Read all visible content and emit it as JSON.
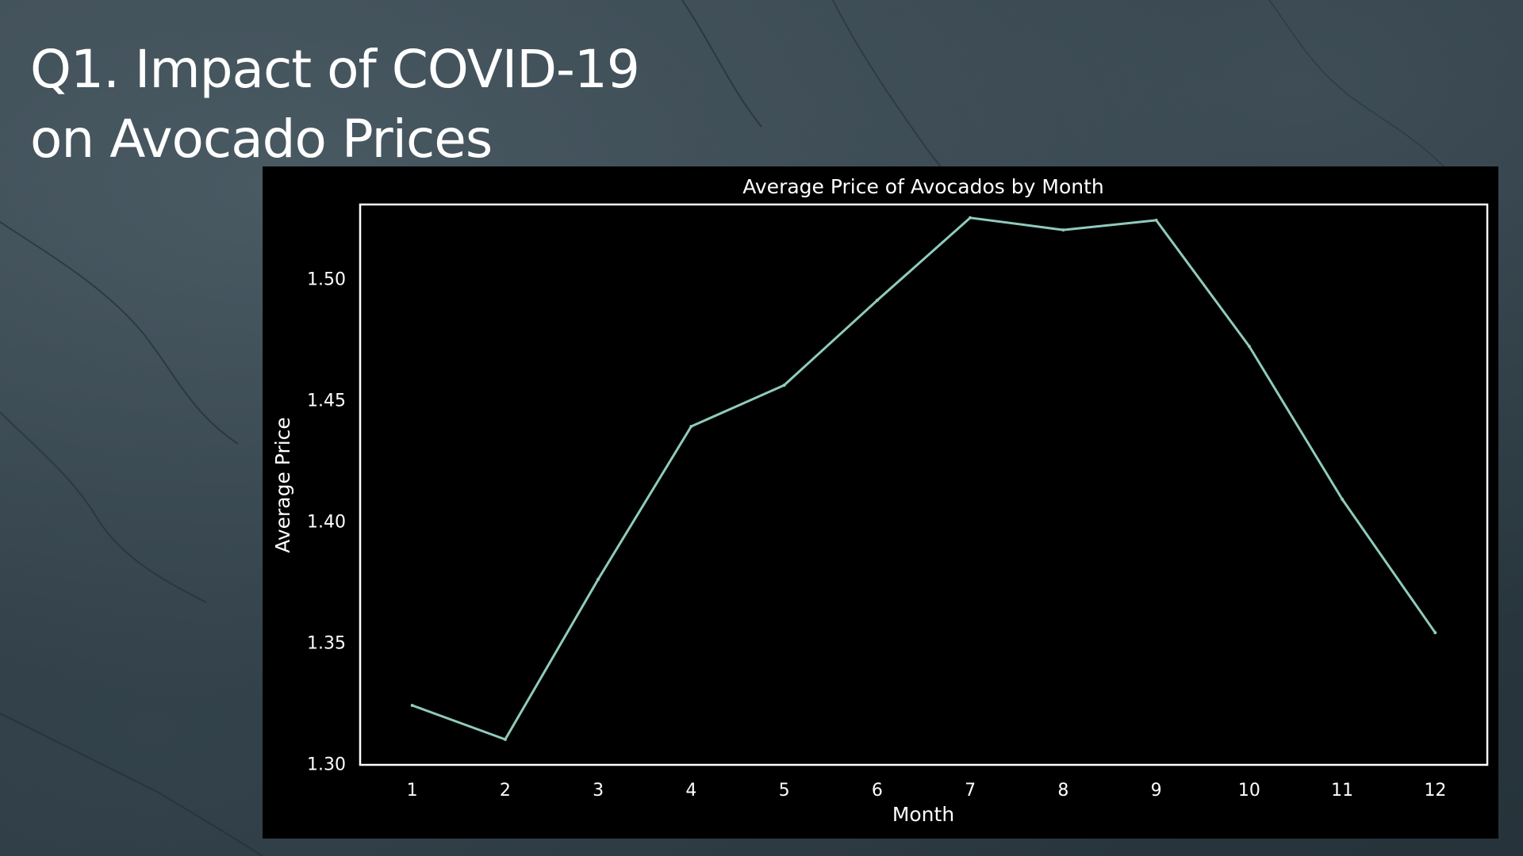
{
  "slide": {
    "title_line1": "Q1. Impact of COVID-19",
    "title_line2": "on Avocado Prices"
  },
  "colors": {
    "line": "#8fcbbd",
    "panel": "#000000",
    "text": "#ffffff"
  },
  "chart_data": {
    "type": "line",
    "title": "Average Price of Avocados by Month",
    "xlabel": "Month",
    "ylabel": "Average Price",
    "x": [
      1,
      2,
      3,
      4,
      5,
      6,
      7,
      8,
      9,
      10,
      11,
      12
    ],
    "series": [
      {
        "values": [
          1.324,
          1.31,
          1.376,
          1.439,
          1.456,
          1.491,
          1.525,
          1.52,
          1.524,
          1.472,
          1.409,
          1.354
        ]
      }
    ],
    "xlim": [
      0.44,
      12.56
    ],
    "ylim": [
      1.2995,
      1.5305
    ],
    "yticks": [
      "1.30",
      "1.35",
      "1.40",
      "1.45",
      "1.50"
    ],
    "xticks": [
      "1",
      "2",
      "3",
      "4",
      "5",
      "6",
      "7",
      "8",
      "9",
      "10",
      "11",
      "12"
    ],
    "grid": false,
    "legend": "none"
  }
}
